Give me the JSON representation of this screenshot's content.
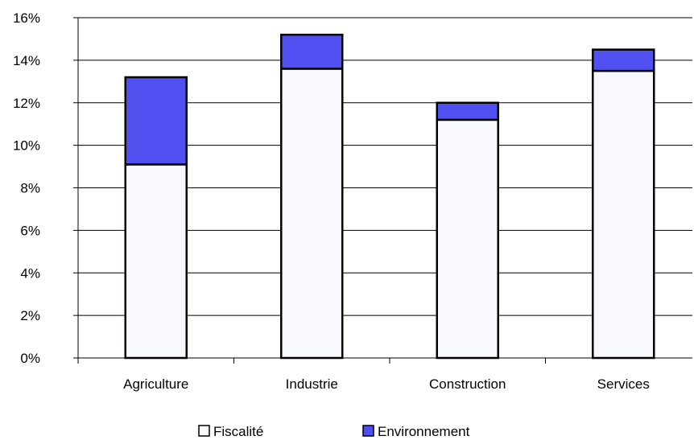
{
  "chart_data": {
    "type": "bar",
    "stacked": true,
    "categories": [
      "Agriculture",
      "Industrie",
      "Construction",
      "Services"
    ],
    "series": [
      {
        "name": "Fiscalité",
        "values": [
          9.1,
          13.6,
          11.2,
          13.5
        ],
        "color": "#f8f8ff"
      },
      {
        "name": "Environnement",
        "values": [
          4.1,
          1.6,
          0.8,
          1.0
        ],
        "color": "#5050f0"
      }
    ],
    "ylim": [
      0,
      16
    ],
    "yticks": [
      0,
      2,
      4,
      6,
      8,
      10,
      12,
      14,
      16
    ],
    "ytick_suffix": "%",
    "grid": true,
    "legend": "bottom"
  }
}
